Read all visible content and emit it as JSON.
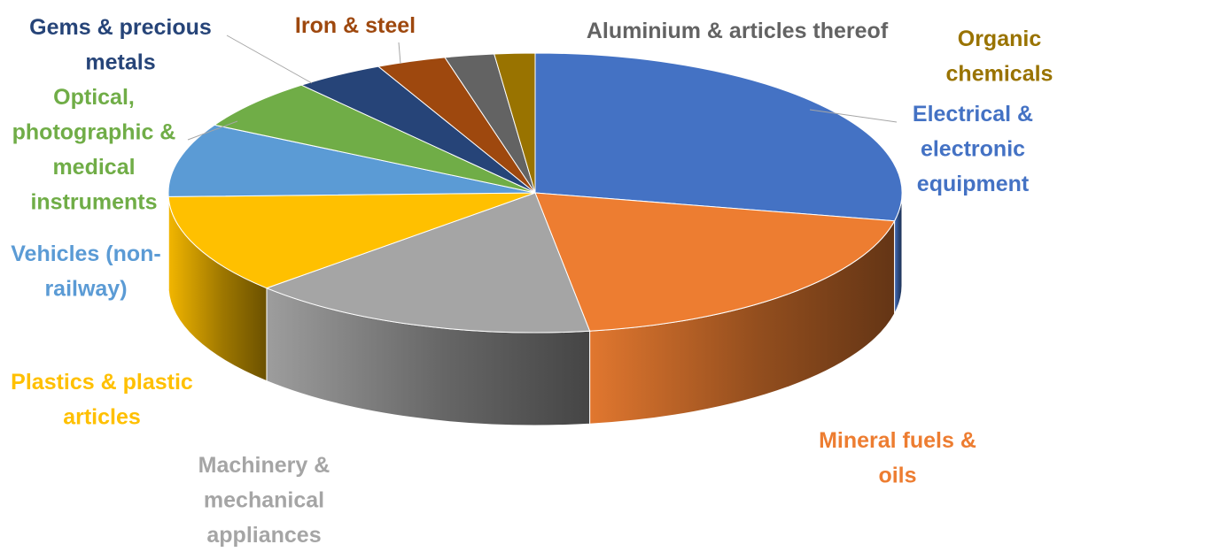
{
  "chart_data": {
    "type": "pie",
    "title": "",
    "categories": [
      "Electrical & electronic equipment",
      "Mineral fuels & oils",
      "Machinery & mechanical appliances",
      "Plastics & plastic articles",
      "Vehicles (non-railway)",
      "Optical, photographic & medical instruments",
      "Gems & precious metals",
      "Iron & steel",
      "Aluminium & articles thereof",
      "Organic chemicals"
    ],
    "values": [
      28.5,
      19.6,
      15.6,
      11.6,
      8.6,
      6.0,
      4.0,
      3.1,
      2.2,
      1.8
    ],
    "colors": [
      "#4472C4",
      "#ED7D31",
      "#A5A5A5",
      "#FFC000",
      "#5B9BD5",
      "#70AD47",
      "#264478",
      "#9E480E",
      "#636363",
      "#997300"
    ],
    "legend": "labels-around-pie",
    "style": "3d"
  }
}
